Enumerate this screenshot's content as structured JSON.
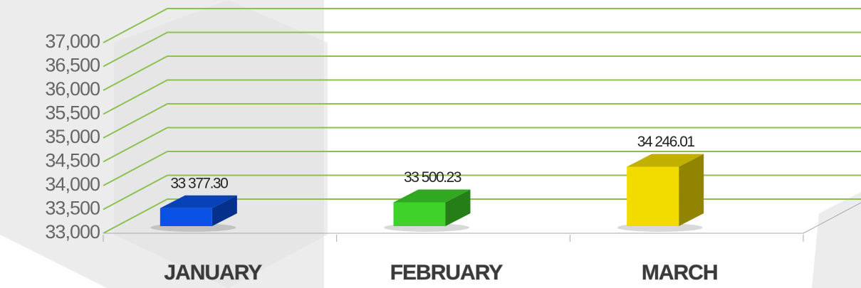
{
  "chart_data": {
    "type": "bar3d",
    "categories": [
      "JANUARY",
      "FEBRUARY",
      "MARCH"
    ],
    "values": [
      33377.3,
      33500.23,
      34246.01
    ],
    "value_labels": [
      "33 377.30",
      "33 500.23",
      "34 246.01"
    ],
    "colors": [
      "#0a52e6",
      "#3fd22a",
      "#f2dc00"
    ],
    "ylim": [
      33000,
      37000
    ],
    "yticks": [
      {
        "value": 33000,
        "label": "33,000"
      },
      {
        "value": 33500,
        "label": "33,500"
      },
      {
        "value": 34000,
        "label": "34,000"
      },
      {
        "value": 34500,
        "label": "34,500"
      },
      {
        "value": 35000,
        "label": "35,000"
      },
      {
        "value": 35500,
        "label": "35,500"
      },
      {
        "value": 36000,
        "label": "36,000"
      },
      {
        "value": 36500,
        "label": "36,500"
      },
      {
        "value": 37000,
        "label": "37,000"
      }
    ],
    "grid": true
  }
}
